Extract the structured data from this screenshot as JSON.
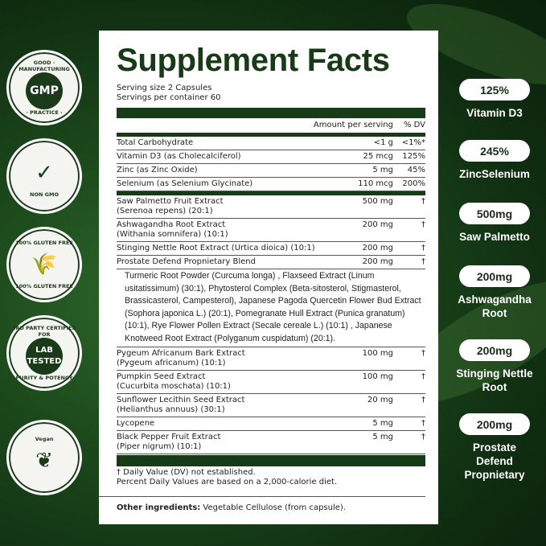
{
  "title": "Supplement Facts",
  "serving_size": "Serving size 2 Capsules",
  "servings_per_container": "Servings per container 60",
  "header": {
    "amount": "Amount per serving",
    "dv": "% DV"
  },
  "nutrients": [
    {
      "name": "Total Carbohydrate",
      "amount": "<1 g",
      "dv": "<1%*"
    },
    {
      "name": "Vitamin D3 (as Cholecalciferol)",
      "amount": "25 mcg",
      "dv": "125%"
    },
    {
      "name": "Zinc (as Zinc Oxide)",
      "amount": "5 mg",
      "dv": "45%"
    },
    {
      "name": "Selenium (as Selenium Glycinate)",
      "amount": "110 mcg",
      "dv": "200%"
    }
  ],
  "ingredients_a": [
    {
      "name": "Saw Palmetto Fruit Extract",
      "sub": "(Serenoa repens) (20:1)",
      "amount": "500 mg",
      "dv": "†"
    },
    {
      "name": "Ashwagandha Root Extract",
      "sub": "(Withania somnifera) (10:1)",
      "amount": "200 mg",
      "dv": "†"
    },
    {
      "name": "Stinging Nettle Root Extract (Urtica dioica) (10:1)",
      "sub": "",
      "amount": "200 mg",
      "dv": "†"
    },
    {
      "name": "Prostate Defend Propnietary Blend",
      "sub": "",
      "amount": "200 mg",
      "dv": "†"
    }
  ],
  "blend_text": "Turmeric Root Powder (Curcuma longa) , Flaxseed Extract (Linum usitatissimum) (30:1), Phytosterol Complex (Beta-sitosterol, Stigmasterol, Brassicasterol, Campesterol), Japanese Pagoda Quercetin Flower Bud Extract (Sophora japonica L.) (20:1), Pomegranate Hull Extract (Punica granatum) (10:1), Rye Flower Pollen Extract (Secale cereale L.) (10:1) , Japanese Knotweed  Root Extract (Polyganum cuspidatum) (20:1).",
  "ingredients_b": [
    {
      "name": "Pygeum Africanum Bark Extract",
      "sub": "(Pygeum africanum) (10:1)",
      "amount": "100 mg",
      "dv": "†"
    },
    {
      "name": "Pumpkin Seed Extract",
      "sub": "(Cucurbita moschata) (10:1)",
      "amount": "100 mg",
      "dv": "†"
    },
    {
      "name": "Sunflower Lecithin Seed Extract",
      "sub": "(Helianthus annuus) (30:1)",
      "amount": "20 mg",
      "dv": "†"
    },
    {
      "name": "Lycopene",
      "sub": "",
      "amount": "5 mg",
      "dv": "†"
    },
    {
      "name": "Black Pepper Fruit Extract",
      "sub": "(Piper nigrum) (10:1)",
      "amount": "5 mg",
      "dv": "†"
    }
  ],
  "footnote1": "† Daily Value (DV) not established.",
  "footnote2": "Percent Daily Values are based on a 2,000-calorie diet.",
  "other_label": "Other ingredients:",
  "other_value": " Vegetable Cellulose (from capsule).",
  "badges": [
    {
      "icon": "gmp-icon",
      "center": "GMP",
      "ring_top": "GOOD · MANUFACTURING",
      "ring_bottom": "· PRACTICE ·"
    },
    {
      "icon": "checkmark-leaf-icon",
      "center": "✓",
      "ring_top": "",
      "ring_bottom": "NON GMO"
    },
    {
      "icon": "wheat-icon",
      "center": "🌾",
      "ring_top": "100% GLUTEN FREE",
      "ring_bottom": "100% GLUTEN FREE"
    },
    {
      "icon": "lab-tested-icon",
      "center": "LAB TESTED",
      "ring_top": "3RD PARTY CERTIFIED FOR",
      "ring_bottom": "PURITY & POTENCY"
    },
    {
      "icon": "vegan-leaf-icon",
      "center": "❦",
      "ring_top": "Vegan",
      "ring_bottom": ""
    }
  ],
  "highlights": [
    {
      "value": "125%",
      "label": "Vitamin D3"
    },
    {
      "value": "245%",
      "label": "ZincSelenium"
    },
    {
      "value": "500mg",
      "label": "Saw Palmetto"
    },
    {
      "value": "200mg",
      "label": "Ashwagandha Root"
    },
    {
      "value": "200mg",
      "label": "Stinging Nettle Root"
    },
    {
      "value": "200mg",
      "label": "Prostate Defend Propnietary"
    }
  ],
  "colors": {
    "brand_dark_green": "#173b17",
    "background": "#1c4a1c"
  }
}
